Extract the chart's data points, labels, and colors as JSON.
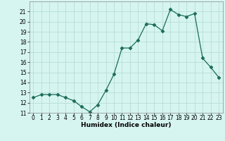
{
  "x": [
    0,
    1,
    2,
    3,
    4,
    5,
    6,
    7,
    8,
    9,
    10,
    11,
    12,
    13,
    14,
    15,
    16,
    17,
    18,
    19,
    20,
    21,
    22,
    23
  ],
  "y": [
    12.5,
    12.8,
    12.8,
    12.8,
    12.5,
    12.2,
    11.6,
    11.1,
    11.8,
    13.2,
    14.8,
    17.4,
    17.4,
    18.2,
    19.8,
    19.7,
    19.1,
    21.2,
    20.7,
    20.5,
    20.8,
    16.4,
    15.5,
    14.5
  ],
  "line_color": "#1a6b5a",
  "marker": "D",
  "marker_size": 2.5,
  "bg_color": "#d6f5f0",
  "grid_color": "#b8ddd8",
  "xlabel": "Humidex (Indice chaleur)",
  "ylim": [
    11,
    22
  ],
  "xlim": [
    -0.5,
    23.5
  ],
  "yticks": [
    11,
    12,
    13,
    14,
    15,
    16,
    17,
    18,
    19,
    20,
    21
  ],
  "xticks": [
    0,
    1,
    2,
    3,
    4,
    5,
    6,
    7,
    8,
    9,
    10,
    11,
    12,
    13,
    14,
    15,
    16,
    17,
    18,
    19,
    20,
    21,
    22,
    23
  ],
  "tick_fontsize": 5.5,
  "xlabel_fontsize": 6.5
}
